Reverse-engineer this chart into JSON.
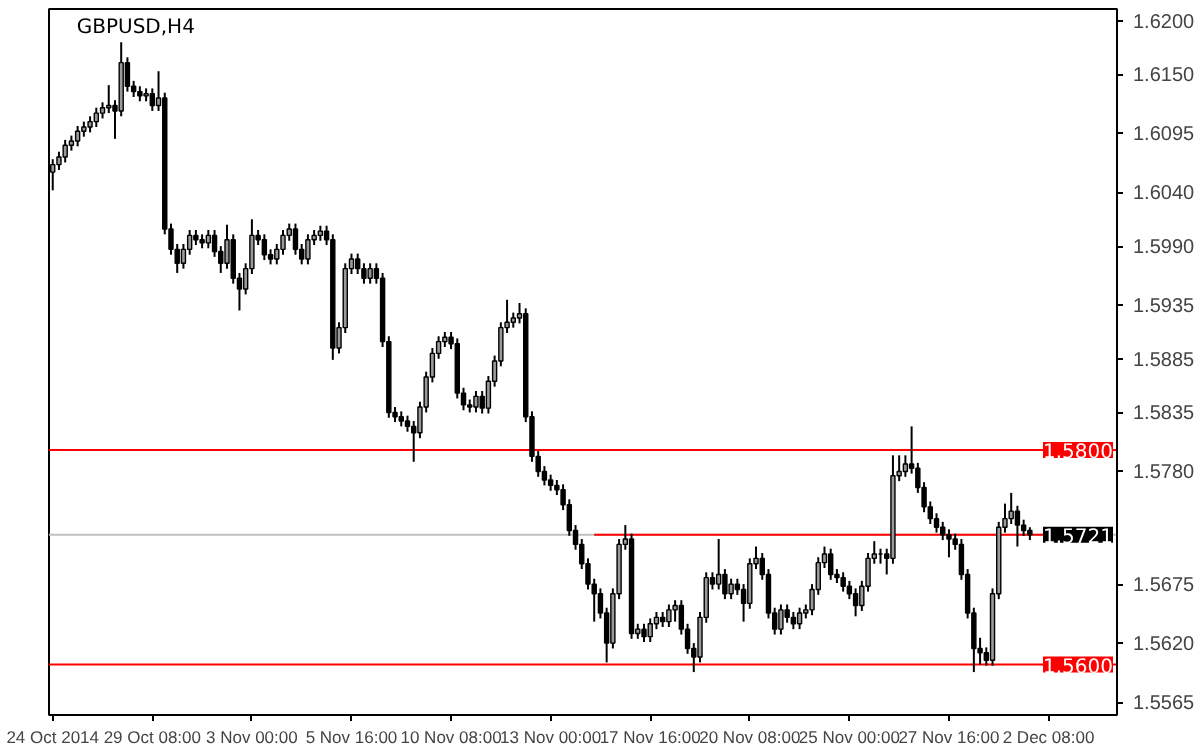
{
  "chart_data": {
    "type": "candlestick",
    "title": "GBPUSD,H4",
    "categories": [
      "24 Oct 2014",
      null,
      null,
      null,
      null,
      null,
      null,
      null,
      null,
      null,
      null,
      null,
      null,
      null,
      null,
      null,
      "29 Oct 08:00",
      null,
      null,
      null,
      null,
      null,
      null,
      null,
      null,
      null,
      null,
      null,
      null,
      null,
      null,
      null,
      "3 Nov 00:00",
      null,
      null,
      null,
      null,
      null,
      null,
      null,
      null,
      null,
      null,
      null,
      null,
      null,
      null,
      null,
      "5 Nov 16:00",
      null,
      null,
      null,
      null,
      null,
      null,
      null,
      null,
      null,
      null,
      null,
      null,
      null,
      null,
      null,
      "10 Nov 08:00",
      null,
      null,
      null,
      null,
      null,
      null,
      null,
      null,
      null,
      null,
      null,
      null,
      null,
      null,
      null,
      "13 Nov 00:00",
      null,
      null,
      null,
      null,
      null,
      null,
      null,
      null,
      null,
      null,
      null,
      null,
      null,
      null,
      null,
      "17 Nov 16:00",
      null,
      null,
      null,
      null,
      null,
      null,
      null,
      null,
      null,
      null,
      null,
      null,
      null,
      null,
      null,
      "20 Nov 08:00",
      null,
      null,
      null,
      null,
      null,
      null,
      null,
      null,
      null,
      null,
      null,
      null,
      null,
      null,
      null,
      "25 Nov 00:00",
      null,
      null,
      null,
      null,
      null,
      null,
      null,
      null,
      null,
      null,
      null,
      null,
      null,
      null,
      null,
      "27 Nov 16:00",
      null,
      null,
      null,
      null,
      null,
      null,
      null,
      null,
      null,
      null,
      null,
      null,
      null,
      null,
      null,
      "2 Dec 08:00"
    ],
    "ohlc": [
      [
        1.6059,
        1.6071,
        1.6042,
        1.6066
      ],
      [
        1.6066,
        1.6078,
        1.6061,
        1.6073
      ],
      [
        1.6073,
        1.6089,
        1.6068,
        1.6084
      ],
      [
        1.6084,
        1.6093,
        1.6079,
        1.6088
      ],
      [
        1.6088,
        1.6102,
        1.6083,
        1.6097
      ],
      [
        1.6097,
        1.6106,
        1.6092,
        1.6101
      ],
      [
        1.6101,
        1.6111,
        1.6096,
        1.6106
      ],
      [
        1.6106,
        1.6119,
        1.6101,
        1.6114
      ],
      [
        1.6114,
        1.6124,
        1.6109,
        1.6119
      ],
      [
        1.6119,
        1.614,
        1.6114,
        1.6121
      ],
      [
        1.6121,
        1.6126,
        1.609,
        1.6116
      ],
      [
        1.6116,
        1.618,
        1.6111,
        1.6161
      ],
      [
        1.6161,
        1.6166,
        1.6134,
        1.6139
      ],
      [
        1.6139,
        1.6144,
        1.6129,
        1.6134
      ],
      [
        1.6134,
        1.6139,
        1.6125,
        1.613
      ],
      [
        1.613,
        1.6137,
        1.6125,
        1.6132
      ],
      [
        1.6132,
        1.6137,
        1.6116,
        1.6121
      ],
      [
        1.6121,
        1.6153,
        1.6116,
        1.6128
      ],
      [
        1.6128,
        1.6133,
        1.6001,
        1.6006
      ],
      [
        1.6006,
        1.6011,
        1.5982,
        1.5987
      ],
      [
        1.5987,
        1.5992,
        1.5965,
        1.5974
      ],
      [
        1.5974,
        1.5992,
        1.5969,
        1.5987
      ],
      [
        1.5987,
        1.6005,
        1.5982,
        1.6
      ],
      [
        1.6,
        1.6005,
        1.5991,
        1.5996
      ],
      [
        1.5996,
        1.6001,
        1.5988,
        1.5993
      ],
      [
        1.5993,
        1.6005,
        1.5988,
        1.6
      ],
      [
        1.6,
        1.6005,
        1.598,
        1.5985
      ],
      [
        1.5985,
        1.599,
        1.5965,
        1.5974
      ],
      [
        1.5974,
        1.601,
        1.5969,
        1.5996
      ],
      [
        1.5996,
        1.6001,
        1.5955,
        1.596
      ],
      [
        1.596,
        1.5965,
        1.593,
        1.595
      ],
      [
        1.595,
        1.5974,
        1.5945,
        1.5969
      ],
      [
        1.5969,
        1.6015,
        1.5964,
        1.6
      ],
      [
        1.6,
        1.6005,
        1.5991,
        1.5996
      ],
      [
        1.5996,
        1.6001,
        1.5977,
        1.5982
      ],
      [
        1.5982,
        1.5987,
        1.5973,
        1.5978
      ],
      [
        1.5978,
        1.5992,
        1.5973,
        1.5987
      ],
      [
        1.5987,
        1.6005,
        1.5982,
        1.6
      ],
      [
        1.6,
        1.6011,
        1.5995,
        1.6006
      ],
      [
        1.6006,
        1.6011,
        1.5982,
        1.5987
      ],
      [
        1.5987,
        1.5992,
        1.5973,
        1.5978
      ],
      [
        1.5978,
        1.6001,
        1.5973,
        1.5996
      ],
      [
        1.5996,
        1.6005,
        1.5991,
        1.6
      ],
      [
        1.6,
        1.6009,
        1.5995,
        1.6004
      ],
      [
        1.6004,
        1.6009,
        1.5991,
        1.5996
      ],
      [
        1.5996,
        1.6001,
        1.5884,
        1.5895
      ],
      [
        1.5895,
        1.5919,
        1.589,
        1.5914
      ],
      [
        1.5914,
        1.5974,
        1.5909,
        1.5969
      ],
      [
        1.5969,
        1.5983,
        1.5964,
        1.5978
      ],
      [
        1.5978,
        1.5983,
        1.5964,
        1.5969
      ],
      [
        1.5969,
        1.5974,
        1.5955,
        1.596
      ],
      [
        1.596,
        1.5974,
        1.5955,
        1.5969
      ],
      [
        1.5969,
        1.5974,
        1.5955,
        1.596
      ],
      [
        1.596,
        1.5965,
        1.5896,
        1.5901
      ],
      [
        1.5901,
        1.5906,
        1.583,
        1.5835
      ],
      [
        1.5835,
        1.584,
        1.5826,
        1.5831
      ],
      [
        1.5831,
        1.5836,
        1.5822,
        1.5827
      ],
      [
        1.5827,
        1.5832,
        1.5817,
        1.5822
      ],
      [
        1.5822,
        1.5827,
        1.5789,
        1.5816
      ],
      [
        1.5816,
        1.5845,
        1.5811,
        1.584
      ],
      [
        1.584,
        1.5873,
        1.5835,
        1.5868
      ],
      [
        1.5868,
        1.5895,
        1.5863,
        1.589
      ],
      [
        1.589,
        1.5906,
        1.5885,
        1.5901
      ],
      [
        1.5901,
        1.591,
        1.5896,
        1.5905
      ],
      [
        1.5905,
        1.591,
        1.5894,
        1.5899
      ],
      [
        1.5899,
        1.5904,
        1.5848,
        1.5853
      ],
      [
        1.5853,
        1.5858,
        1.5837,
        1.5842
      ],
      [
        1.5842,
        1.5847,
        1.5835,
        1.584
      ],
      [
        1.584,
        1.5855,
        1.5835,
        1.585
      ],
      [
        1.585,
        1.5855,
        1.5834,
        1.5839
      ],
      [
        1.5839,
        1.5869,
        1.5834,
        1.5864
      ],
      [
        1.5864,
        1.5888,
        1.5859,
        1.5883
      ],
      [
        1.5883,
        1.5919,
        1.5878,
        1.5914
      ],
      [
        1.5914,
        1.594,
        1.5909,
        1.5919
      ],
      [
        1.5919,
        1.5928,
        1.5914,
        1.5923
      ],
      [
        1.5923,
        1.5937,
        1.5918,
        1.5927
      ],
      [
        1.5927,
        1.5932,
        1.5826,
        1.5831
      ],
      [
        1.5831,
        1.5836,
        1.5789,
        1.5794
      ],
      [
        1.5794,
        1.5799,
        1.5775,
        1.578
      ],
      [
        1.578,
        1.5785,
        1.5767,
        1.5772
      ],
      [
        1.5772,
        1.5777,
        1.5762,
        1.5767
      ],
      [
        1.5767,
        1.5772,
        1.5758,
        1.5763
      ],
      [
        1.5763,
        1.5768,
        1.5744,
        1.5749
      ],
      [
        1.5749,
        1.5754,
        1.572,
        1.5725
      ],
      [
        1.5725,
        1.573,
        1.5707,
        1.5712
      ],
      [
        1.5712,
        1.5717,
        1.5689,
        1.5694
      ],
      [
        1.5694,
        1.5699,
        1.567,
        1.5675
      ],
      [
        1.5675,
        1.568,
        1.564,
        1.5666
      ],
      [
        1.5666,
        1.5671,
        1.5643,
        1.5648
      ],
      [
        1.5648,
        1.5653,
        1.5602,
        1.562
      ],
      [
        1.562,
        1.5671,
        1.5615,
        1.5666
      ],
      [
        1.5666,
        1.5717,
        1.5661,
        1.5712
      ],
      [
        1.5712,
        1.573,
        1.5707,
        1.5717
      ],
      [
        1.5717,
        1.5722,
        1.5624,
        1.5629
      ],
      [
        1.5629,
        1.5638,
        1.5624,
        1.5633
      ],
      [
        1.5633,
        1.5638,
        1.5621,
        1.5626
      ],
      [
        1.5626,
        1.5643,
        1.5621,
        1.5638
      ],
      [
        1.5638,
        1.5649,
        1.5633,
        1.5644
      ],
      [
        1.5644,
        1.5649,
        1.5635,
        1.564
      ],
      [
        1.564,
        1.5656,
        1.5635,
        1.5651
      ],
      [
        1.5651,
        1.566,
        1.564,
        1.5655
      ],
      [
        1.5655,
        1.566,
        1.5628,
        1.5633
      ],
      [
        1.5633,
        1.5638,
        1.561,
        1.5615
      ],
      [
        1.5615,
        1.562,
        1.5593,
        1.5607
      ],
      [
        1.5607,
        1.5649,
        1.5602,
        1.5644
      ],
      [
        1.5644,
        1.5686,
        1.5639,
        1.5681
      ],
      [
        1.5681,
        1.5686,
        1.567,
        1.5675
      ],
      [
        1.5675,
        1.5717,
        1.567,
        1.5684
      ],
      [
        1.5684,
        1.5689,
        1.5661,
        1.5666
      ],
      [
        1.5666,
        1.568,
        1.5661,
        1.5675
      ],
      [
        1.5675,
        1.568,
        1.5665,
        1.567
      ],
      [
        1.567,
        1.5675,
        1.564,
        1.5657
      ],
      [
        1.5657,
        1.5699,
        1.5652,
        1.5694
      ],
      [
        1.5694,
        1.571,
        1.5689,
        1.5699
      ],
      [
        1.5699,
        1.5704,
        1.5679,
        1.5684
      ],
      [
        1.5684,
        1.5689,
        1.5643,
        1.5648
      ],
      [
        1.5648,
        1.5653,
        1.5628,
        1.5633
      ],
      [
        1.5633,
        1.5656,
        1.5628,
        1.5651
      ],
      [
        1.5651,
        1.5656,
        1.5639,
        1.5644
      ],
      [
        1.5644,
        1.5649,
        1.5633,
        1.5638
      ],
      [
        1.5638,
        1.5653,
        1.5633,
        1.5648
      ],
      [
        1.5648,
        1.5656,
        1.5643,
        1.5651
      ],
      [
        1.5651,
        1.5675,
        1.5646,
        1.567
      ],
      [
        1.567,
        1.57,
        1.5665,
        1.5695
      ],
      [
        1.5695,
        1.571,
        1.569,
        1.5703
      ],
      [
        1.5703,
        1.5708,
        1.5679,
        1.5684
      ],
      [
        1.5684,
        1.5689,
        1.5676,
        1.5681
      ],
      [
        1.5681,
        1.5686,
        1.5668,
        1.5673
      ],
      [
        1.5673,
        1.5678,
        1.5661,
        1.5666
      ],
      [
        1.5666,
        1.5671,
        1.5645,
        1.5655
      ],
      [
        1.5655,
        1.5678,
        1.565,
        1.5673
      ],
      [
        1.5673,
        1.5704,
        1.5668,
        1.5699
      ],
      [
        1.5699,
        1.5715,
        1.5694,
        1.5703
      ],
      [
        1.5703,
        1.5708,
        1.5694,
        1.5703
      ],
      [
        1.5703,
        1.5708,
        1.5684,
        1.5699
      ],
      [
        1.5699,
        1.5795,
        1.5694,
        1.5776
      ],
      [
        1.5776,
        1.5795,
        1.5771,
        1.578
      ],
      [
        1.578,
        1.5795,
        1.5775,
        1.5787
      ],
      [
        1.5787,
        1.5822,
        1.5778,
        1.5783
      ],
      [
        1.5783,
        1.5788,
        1.576,
        1.5765
      ],
      [
        1.5765,
        1.577,
        1.5742,
        1.5747
      ],
      [
        1.5747,
        1.5752,
        1.5731,
        1.5736
      ],
      [
        1.5736,
        1.5741,
        1.5723,
        1.5728
      ],
      [
        1.5728,
        1.5733,
        1.5716,
        1.5721
      ],
      [
        1.5721,
        1.5726,
        1.57,
        1.5717
      ],
      [
        1.5717,
        1.5722,
        1.5707,
        1.5712
      ],
      [
        1.5712,
        1.5717,
        1.5679,
        1.5684
      ],
      [
        1.5684,
        1.5689,
        1.5643,
        1.5648
      ],
      [
        1.5648,
        1.5653,
        1.5593,
        1.5615
      ],
      [
        1.5615,
        1.5625,
        1.56,
        1.5611
      ],
      [
        1.5611,
        1.5616,
        1.5599,
        1.5604
      ],
      [
        1.5604,
        1.5671,
        1.5599,
        1.5666
      ],
      [
        1.5666,
        1.5733,
        1.5661,
        1.5728
      ],
      [
        1.5728,
        1.575,
        1.5723,
        1.5736
      ],
      [
        1.5736,
        1.576,
        1.5731,
        1.5743
      ],
      [
        1.5743,
        1.5748,
        1.571,
        1.573
      ],
      [
        1.573,
        1.5735,
        1.572,
        1.5725
      ],
      [
        1.5725,
        1.5728,
        1.5716,
        1.5721
      ],
      null,
      null,
      null
    ],
    "series": [
      {
        "type": "line",
        "color": "#ff0000",
        "values": [
          null,
          null,
          null,
          null,
          null,
          null,
          null,
          null,
          null,
          null,
          null,
          null,
          null,
          null,
          null,
          null,
          null,
          null,
          null,
          null,
          null,
          null,
          null,
          null,
          null,
          null,
          null,
          null,
          null,
          null,
          null,
          null,
          null,
          null,
          null,
          null,
          null,
          null,
          null,
          null,
          null,
          null,
          null,
          null,
          null,
          null,
          null,
          null,
          null,
          null,
          null,
          null,
          null,
          null,
          null,
          null,
          null,
          null,
          null,
          null,
          null,
          null,
          null,
          null,
          null,
          null,
          null,
          null,
          null,
          null,
          null,
          null,
          null,
          null,
          null,
          null,
          null,
          null,
          null,
          null,
          null,
          null,
          null,
          null,
          null,
          null,
          null,
          1.5721,
          1.5721,
          1.5721,
          1.5721,
          1.5721,
          1.5721,
          1.5721,
          1.5721,
          1.5721,
          1.5721,
          1.5721,
          1.5721,
          1.5721,
          1.5721,
          1.5721,
          1.5721,
          1.5721,
          1.5721,
          1.5721,
          1.5721,
          1.5721,
          1.5721,
          1.5721,
          1.5721,
          1.5721,
          1.5721,
          1.5721,
          1.5721,
          1.5721,
          1.5721,
          1.5721,
          1.5721,
          1.5721,
          1.5721,
          1.5721,
          1.5721,
          1.5721,
          1.5721,
          1.5721,
          1.5721,
          1.5721,
          1.5721,
          1.5721,
          1.5721,
          1.5721,
          1.5721,
          1.5721,
          1.5721,
          1.5721,
          1.5721,
          1.5721,
          1.5721,
          1.5721,
          1.5721,
          1.5721,
          1.5721,
          1.5721,
          1.5721,
          1.5721,
          1.5721,
          1.5721,
          1.5721,
          1.5721,
          1.5721,
          1.5721,
          1.5721,
          1.5721,
          1.5721,
          1.5721,
          1.5721,
          1.5721,
          1.5721,
          1.5721,
          1.5721
        ]
      }
    ],
    "ylim": [
      1.5553,
      1.6211
    ],
    "yticks": [
      {
        "value": 1.62,
        "label": "1.6200"
      },
      {
        "value": 1.615,
        "label": "1.6150"
      },
      1.6095,
      {
        "value": 1.604,
        "label": "1.6040"
      },
      {
        "value": 1.599,
        "label": "1.5990"
      },
      1.5935,
      1.5885,
      1.5835,
      {
        "value": 1.578,
        "label": "1.5780"
      },
      1.5675,
      {
        "value": 1.562,
        "label": "1.5620"
      },
      1.5565
    ],
    "ref_lines": [
      {
        "axis": "y",
        "value": 1.58,
        "label": "1.5800",
        "color": "#ff0000"
      },
      {
        "axis": "y",
        "value": 1.56,
        "label": "1.5600",
        "color": "#ff0000"
      },
      {
        "axis": "y",
        "value": 1.5721,
        "label": "1.5721",
        "color": "#c0c0c0"
      }
    ],
    "grid": false
  }
}
